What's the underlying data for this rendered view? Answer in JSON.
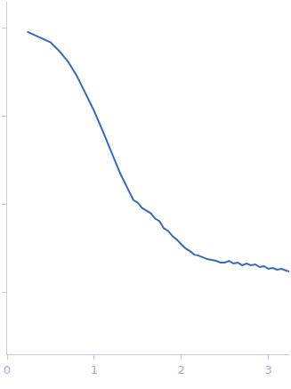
{
  "chart_data": {
    "type": "line",
    "color": "#3b69b4",
    "tick_labels": "x",
    "grid": false,
    "xlim": [
      0,
      3.24
    ],
    "xticks": [
      0,
      1,
      2,
      3
    ],
    "ylim": [
      0.3,
      4.3
    ],
    "yticks": [
      1,
      2,
      3,
      4
    ],
    "x": [
      0.23,
      0.3,
      0.4,
      0.5,
      0.6,
      0.7,
      0.8,
      0.9,
      1.0,
      1.1,
      1.2,
      1.3,
      1.4,
      1.45,
      1.5,
      1.55,
      1.6,
      1.65,
      1.7,
      1.75,
      1.8,
      1.85,
      1.9,
      1.95,
      2.0,
      2.05,
      2.1,
      2.15,
      2.2,
      2.25,
      2.3,
      2.35,
      2.4,
      2.45,
      2.5,
      2.55,
      2.6,
      2.65,
      2.7,
      2.75,
      2.8,
      2.85,
      2.9,
      2.95,
      3.0,
      3.05,
      3.1,
      3.15,
      3.2,
      3.24
    ],
    "values": [
      3.96,
      3.93,
      3.89,
      3.84,
      3.74,
      3.62,
      3.46,
      3.26,
      3.06,
      2.83,
      2.59,
      2.35,
      2.15,
      2.05,
      2.02,
      1.96,
      1.93,
      1.9,
      1.84,
      1.81,
      1.73,
      1.7,
      1.64,
      1.6,
      1.55,
      1.5,
      1.47,
      1.43,
      1.42,
      1.4,
      1.38,
      1.37,
      1.36,
      1.34,
      1.34,
      1.36,
      1.33,
      1.34,
      1.31,
      1.33,
      1.31,
      1.32,
      1.29,
      1.3,
      1.27,
      1.28,
      1.26,
      1.27,
      1.25,
      1.24
    ]
  }
}
